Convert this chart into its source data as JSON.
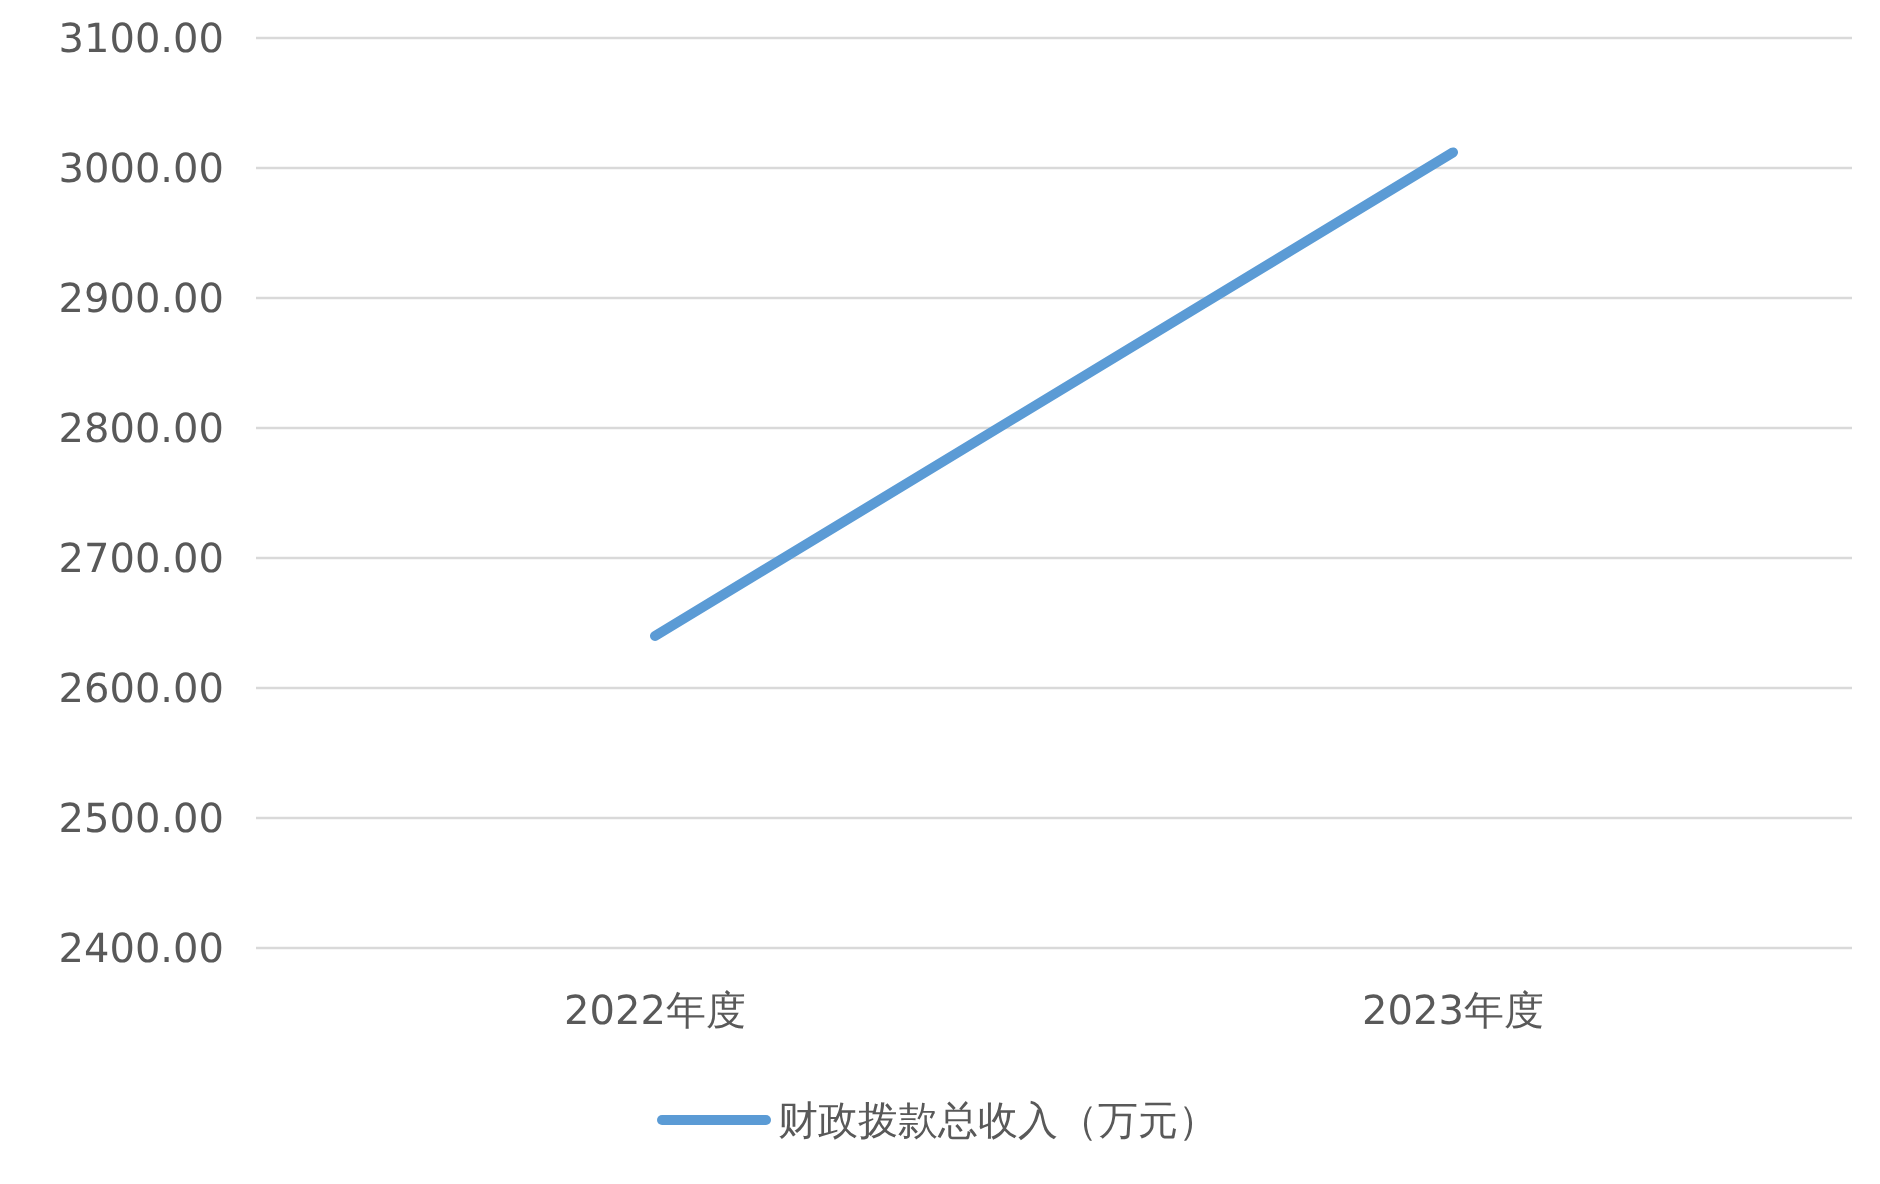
{
  "chart_data": {
    "type": "line",
    "categories": [
      "2022年度",
      "2023年度"
    ],
    "series": [
      {
        "name": "财政拨款总收入（万元）",
        "color": "#5b9bd5",
        "values": [
          2640,
          3012
        ]
      }
    ],
    "ylim": [
      2400,
      3100
    ],
    "yticks": [
      {
        "value": 2400,
        "label": "2400.00"
      },
      {
        "value": 2500,
        "label": "2500.00"
      },
      {
        "value": 2600,
        "label": "2600.00"
      },
      {
        "value": 2700,
        "label": "2700.00"
      },
      {
        "value": 2800,
        "label": "2800.00"
      },
      {
        "value": 2900,
        "label": "2900.00"
      },
      {
        "value": 3000,
        "label": "3000.00"
      },
      {
        "value": 3100,
        "label": "3100.00"
      }
    ],
    "grid": "y",
    "legend": "bottom",
    "marker": "none",
    "line_style": "solid"
  }
}
